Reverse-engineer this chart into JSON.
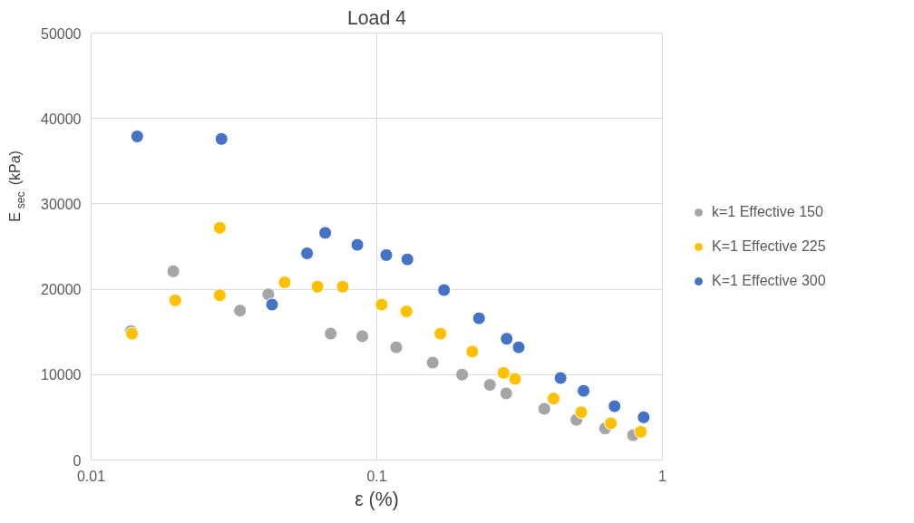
{
  "chart_data": {
    "type": "scatter",
    "title": "Load 4",
    "xlabel": "ε (%)",
    "ylabel": "E$_{sec}$ (kPa)",
    "log": "x",
    "xlim": [
      0.01,
      1
    ],
    "xticks": [
      0.01,
      0.1,
      1
    ],
    "ylim": [
      0,
      50000
    ],
    "yticks": [
      0,
      10000,
      20000,
      30000,
      40000,
      50000
    ],
    "grid": true,
    "legend": "right",
    "marker": "circle",
    "series": [
      {
        "name": "k=1 Effective 150",
        "color": "#a5a5a5",
        "x": [
          0.0138,
          0.0194,
          0.0332,
          0.0417,
          0.069,
          0.089,
          0.117,
          0.157,
          0.199,
          0.249,
          0.284,
          0.386,
          0.5,
          0.63,
          0.79
        ],
        "values": [
          15100,
          22100,
          17500,
          19400,
          14800,
          14500,
          13200,
          11400,
          10000,
          8800,
          7800,
          6000,
          4700,
          3700,
          2900
        ]
      },
      {
        "name": "K=1 Effective 225",
        "color": "#ffc000",
        "x": [
          0.0139,
          0.0197,
          0.0282,
          0.0282,
          0.0476,
          0.062,
          0.076,
          0.104,
          0.127,
          0.167,
          0.216,
          0.278,
          0.305,
          0.416,
          0.52,
          0.66,
          0.84
        ],
        "values": [
          14800,
          18700,
          19300,
          27200,
          20800,
          20300,
          20300,
          18200,
          17400,
          14800,
          12700,
          10200,
          9500,
          7200,
          5600,
          4300,
          3300
        ]
      },
      {
        "name": "K=1 Effective 300",
        "color": "#4472c4",
        "x": [
          0.0145,
          0.0286,
          0.043,
          0.057,
          0.066,
          0.0855,
          0.108,
          0.128,
          0.172,
          0.228,
          0.285,
          0.314,
          0.44,
          0.53,
          0.68,
          0.86
        ],
        "values": [
          37900,
          37600,
          18200,
          24200,
          26600,
          25200,
          24000,
          23500,
          19900,
          16600,
          14200,
          13200,
          9600,
          8100,
          6300,
          5000
        ]
      }
    ]
  }
}
